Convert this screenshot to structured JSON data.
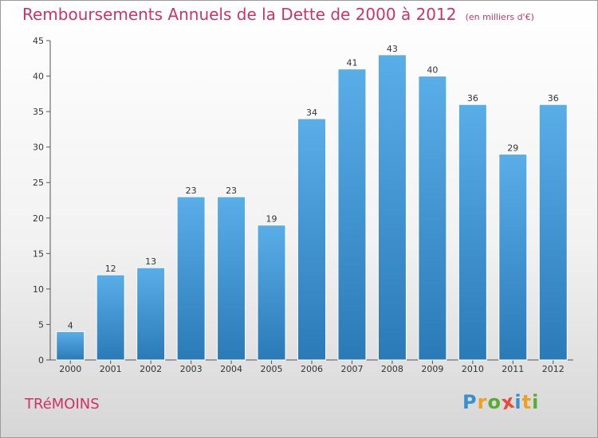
{
  "chart_data": {
    "type": "bar",
    "title": "Remboursements Annuels de la Dette de 2000 à 2012",
    "subtitle": "(en milliers d'€)",
    "categories": [
      "2000",
      "2001",
      "2002",
      "2003",
      "2004",
      "2005",
      "2006",
      "2007",
      "2008",
      "2009",
      "2010",
      "2011",
      "2012"
    ],
    "values": [
      4,
      12,
      13,
      23,
      23,
      19,
      34,
      41,
      43,
      40,
      36,
      29,
      36
    ],
    "data_labels": [
      "4",
      "12",
      "13",
      "23",
      "23",
      "19",
      "34",
      "41",
      "43",
      "40",
      "36",
      "29",
      "36"
    ],
    "y_ticks": [
      0,
      5,
      10,
      15,
      20,
      25,
      30,
      35,
      40,
      45
    ],
    "ylim": [
      0,
      45
    ],
    "xlabel": "",
    "ylabel": "",
    "grid": false,
    "bar_color_top": "#5aaee8",
    "bar_color_bottom": "#2a7ab8"
  },
  "footer": {
    "town": "TRéMOINS",
    "logo_text": "Proxiti",
    "logo_letters": [
      "P",
      "r",
      "o",
      "x",
      "i",
      "t",
      "i"
    ],
    "logo_colors": [
      "#3a8fd0",
      "#f0a020",
      "#5aaa35",
      "#e84a3a",
      "#3a8fd0",
      "#f0a020",
      "#5aaa35"
    ]
  }
}
